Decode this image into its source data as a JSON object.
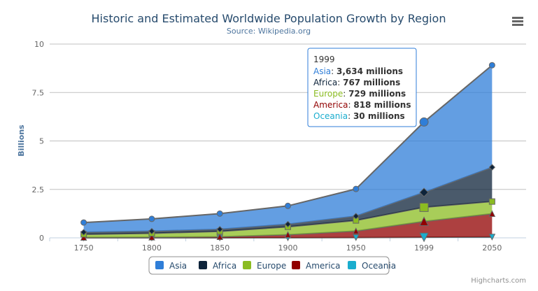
{
  "chart_data": {
    "type": "area",
    "stacked": true,
    "title": "Historic and Estimated Worldwide Population Growth by Region",
    "subtitle": "Source: Wikipedia.org",
    "ylabel": "Billions",
    "xlabel": "",
    "categories": [
      "1750",
      "1800",
      "1850",
      "1900",
      "1950",
      "1999",
      "2050"
    ],
    "yticks": [
      {
        "v": 0,
        "l": "0"
      },
      {
        "v": 2500,
        "l": "2.5"
      },
      {
        "v": 5000,
        "l": "5"
      },
      {
        "v": 7500,
        "l": "7.5"
      },
      {
        "v": 10000,
        "l": "10"
      }
    ],
    "ylim": [
      0,
      10000
    ],
    "grid": true,
    "legend_placement": "bottom",
    "series": [
      {
        "name": "Asia",
        "color": "#2f7ed8",
        "marker": "circle",
        "values": [
          502,
          635,
          809,
          947,
          1402,
          3634,
          5268
        ]
      },
      {
        "name": "Africa",
        "color": "#0d233a",
        "marker": "diamond",
        "values": [
          106,
          107,
          111,
          133,
          221,
          767,
          1766
        ]
      },
      {
        "name": "Europe",
        "color": "#8bbc21",
        "marker": "square",
        "values": [
          163,
          203,
          276,
          408,
          547,
          729,
          628
        ]
      },
      {
        "name": "America",
        "color": "#910000",
        "marker": "triangle",
        "values": [
          18,
          31,
          54,
          156,
          339,
          818,
          1201
        ]
      },
      {
        "name": "Oceania",
        "color": "#1aadce",
        "marker": "triangle-down",
        "values": [
          2,
          2,
          2,
          6,
          13,
          30,
          46
        ]
      }
    ],
    "tooltip": {
      "header": "1999",
      "category_index": 5,
      "rows": [
        {
          "name": "Asia",
          "value": "3,634 millions"
        },
        {
          "name": "Africa",
          "value": "767 millions"
        },
        {
          "name": "Europe",
          "value": "729 millions"
        },
        {
          "name": "America",
          "value": "818 millions"
        },
        {
          "name": "Oceania",
          "value": "30 millions"
        }
      ]
    }
  },
  "credits": "Highcharts.com",
  "menu_icon": "hamburger-menu-icon"
}
